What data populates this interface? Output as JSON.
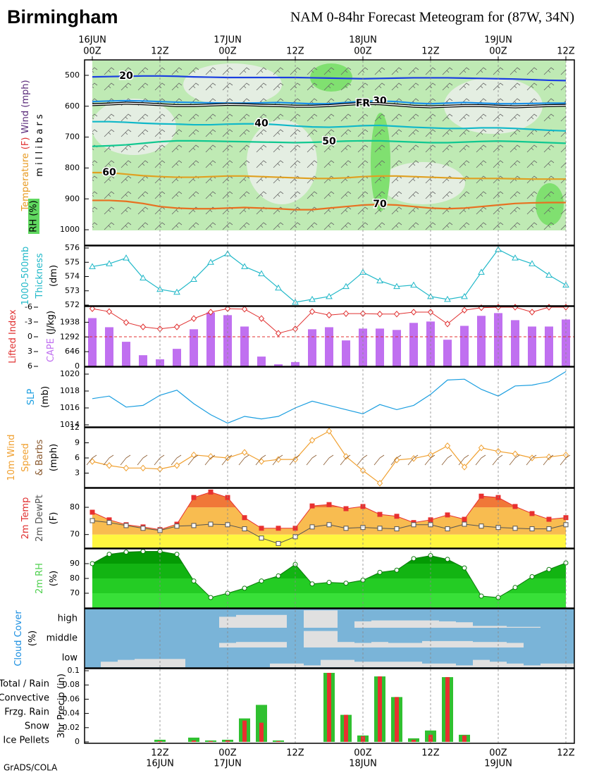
{
  "header": {
    "title": "Birmingham",
    "subtitle": "NAM 0-84hr Forecast Meteogram for (87W, 34N)"
  },
  "footer": "GrADS/COLA",
  "time_axis": {
    "top_labels": [
      [
        "16JUN",
        "00Z"
      ],
      null,
      null,
      null,
      [
        "12Z"
      ],
      null,
      null,
      null,
      [
        "17JUN",
        "00Z"
      ],
      null,
      null,
      null,
      [
        "12Z"
      ],
      null,
      null,
      null,
      [
        "18JUN",
        "00Z"
      ],
      null,
      null,
      null,
      [
        "12Z"
      ],
      null,
      null,
      null,
      [
        "19JUN",
        "00Z"
      ],
      null,
      null,
      null,
      [
        "12Z"
      ]
    ],
    "bottom_labels": [
      null,
      null,
      null,
      null,
      [
        "12Z",
        "16JUN"
      ],
      null,
      null,
      null,
      [
        "00Z",
        "17JUN"
      ],
      null,
      null,
      null,
      [
        "12Z"
      ],
      null,
      null,
      null,
      [
        "00Z",
        "18JUN"
      ],
      null,
      null,
      null,
      [
        "12Z"
      ],
      null,
      null,
      null,
      [
        "00Z",
        "19JUN"
      ],
      null,
      null,
      null,
      [
        "12Z"
      ]
    ]
  },
  "chart_data": [
    {
      "type": "contour",
      "ylabel": [
        [
          {
            "text": "Temperature",
            "color": "#e89a20"
          },
          {
            "text": "(F)",
            "color": "#e03030"
          },
          {
            "text": "Wind (mph)",
            "color": "#5a2a7a"
          }
        ],
        [
          {
            "text": "m i l l i b a r s",
            "color": "#000000"
          }
        ]
      ],
      "rh_label": "RH (%)",
      "ylim": [
        1050,
        450
      ],
      "yticks": [
        500,
        600,
        700,
        800,
        900,
        1000
      ],
      "series": [
        {
          "name": "20",
          "color": "#1a3fe0",
          "values": [
            505,
            504,
            503,
            502,
            502,
            503,
            505,
            506,
            507,
            507,
            507,
            507,
            507,
            508,
            509,
            510,
            511,
            510,
            509,
            508,
            508,
            508,
            509,
            510,
            511,
            512,
            514,
            516,
            517
          ]
        },
        {
          "name": "30",
          "color": "#1a90e8",
          "values": [
            585,
            583,
            582,
            583,
            585,
            587,
            588,
            589,
            590,
            590,
            589,
            588,
            590,
            592,
            592,
            588,
            584,
            583,
            585,
            590,
            592,
            590,
            588,
            590,
            592,
            592,
            591,
            590,
            590
          ]
        },
        {
          "name": "FR",
          "color": "#000000",
          "values": [
            595,
            593,
            590,
            592,
            595,
            598,
            598,
            596,
            594,
            595,
            597,
            598,
            600,
            600,
            598,
            594,
            591,
            592,
            596,
            600,
            602,
            600,
            598,
            598,
            600,
            602,
            600,
            598,
            597
          ]
        },
        {
          "name": "40",
          "color": "#10b8c8",
          "values": [
            650,
            650,
            652,
            655,
            657,
            658,
            660,
            660,
            658,
            657,
            657,
            660,
            664,
            667,
            668,
            666,
            663,
            662,
            665,
            668,
            670,
            672,
            672,
            670,
            670,
            672,
            675,
            678,
            680
          ]
        },
        {
          "name": "50",
          "color": "#10c890",
          "values": [
            730,
            728,
            725,
            720,
            715,
            712,
            712,
            713,
            714,
            715,
            716,
            717,
            718,
            717,
            715,
            713,
            712,
            712,
            714,
            716,
            718,
            718,
            716,
            714,
            713,
            714,
            716,
            718,
            720
          ]
        },
        {
          "name": "60",
          "color": "#e0a020",
          "values": [
            815,
            815,
            820,
            825,
            828,
            830,
            830,
            828,
            826,
            826,
            828,
            830,
            832,
            834,
            834,
            832,
            828,
            826,
            826,
            828,
            830,
            832,
            834,
            834,
            834,
            835,
            836,
            836,
            836
          ]
        },
        {
          "name": "70",
          "color": "#e87020",
          "values": [
            905,
            905,
            908,
            915,
            925,
            930,
            932,
            932,
            930,
            928,
            930,
            932,
            935,
            935,
            930,
            925,
            920,
            918,
            920,
            925,
            930,
            932,
            930,
            925,
            920,
            915,
            913,
            912,
            912
          ]
        }
      ]
    },
    {
      "type": "line",
      "marker": "triangle",
      "color": "#20b8c8",
      "ylabel": [
        [
          {
            "text": "1000-500mb",
            "color": "#20b8c8"
          }
        ],
        [
          {
            "text": "Thickness",
            "color": "#20b8c8"
          }
        ],
        [
          {
            "text": "(dm)",
            "color": "#000000"
          }
        ]
      ],
      "ylim": [
        572,
        576
      ],
      "yticks": [
        572,
        573,
        574,
        575,
        576
      ],
      "values": [
        574.7,
        574.9,
        575.3,
        573.9,
        573.1,
        572.9,
        573.8,
        575.0,
        575.6,
        574.7,
        574.2,
        573.2,
        572.2,
        572.4,
        572.6,
        573.3,
        574.3,
        573.7,
        573.3,
        573.4,
        572.6,
        572.4,
        572.6,
        574.3,
        575.9,
        575.3,
        574.9,
        574.1,
        573.4
      ]
    },
    {
      "type": "bar_line",
      "ylabel": [
        [
          {
            "text": "Lifted Index",
            "color": "#e03030"
          }
        ]
      ],
      "y2label": [
        [
          {
            "text": "CAPE",
            "color": "#c070f0"
          },
          {
            "text": "(J/kg)",
            "color": "#000000"
          }
        ]
      ],
      "ylim": [
        6,
        -6
      ],
      "yticks": [
        -6,
        -3,
        0,
        3,
        6
      ],
      "y2lim": [
        0,
        2600
      ],
      "y2ticks": [
        0,
        646,
        1292,
        1938
      ],
      "series": [
        {
          "name": "CAPE",
          "color": "#c070f0",
          "axis": "y2",
          "values": [
            2120,
            1720,
            1080,
            490,
            310,
            770,
            1630,
            2370,
            2250,
            1750,
            430,
            90,
            190,
            1630,
            1720,
            1140,
            1660,
            1660,
            1600,
            1910,
            1970,
            1170,
            1780,
            2220,
            2340,
            2030,
            1750,
            1750,
            2060
          ]
        },
        {
          "name": "Lifted Index",
          "color": "#e03030",
          "values": [
            -5.7,
            -5.1,
            -2.9,
            -2.0,
            -1.6,
            -2.0,
            -3.7,
            -5.0,
            -5.7,
            -5.6,
            -3.7,
            -0.7,
            -1.6,
            -5.1,
            -4.4,
            -4.7,
            -4.7,
            -4.6,
            -4.6,
            -5.0,
            -5.0,
            -2.6,
            -5.4,
            -5.9,
            -6,
            -6,
            -5.0,
            -6,
            -6
          ]
        }
      ]
    },
    {
      "type": "line",
      "marker": "none",
      "color": "#1a9ee0",
      "ylabel": [
        [
          {
            "text": "SLP",
            "color": "#1a9ee0"
          }
        ],
        [
          {
            "text": "(mb)",
            "color": "#000000"
          }
        ]
      ],
      "ylim": [
        1014,
        1020
      ],
      "yticks": [
        1014,
        1016,
        1018,
        1020
      ],
      "values": [
        1017.1,
        1017.4,
        1016.1,
        1016.3,
        1017.5,
        1018.1,
        1016.5,
        1015.2,
        1014.2,
        1015.0,
        1014.7,
        1015.0,
        1016.0,
        1016.8,
        1016.3,
        1015.8,
        1015.3,
        1016.4,
        1015.8,
        1016.3,
        1017.6,
        1019.3,
        1019.4,
        1018.2,
        1017.4,
        1018.6,
        1018.7,
        1019.1,
        1020.3
      ]
    },
    {
      "type": "line",
      "marker": "diamond",
      "color": "#f0a030",
      "ylabel": [
        [
          {
            "text": "10m Wind",
            "color": "#f0a030"
          }
        ],
        [
          {
            "text": "Speed",
            "color": "#f0a030"
          }
        ],
        [
          {
            "text": "& Barbs",
            "color": "#8a5a30"
          }
        ],
        [
          {
            "text": "(mph)",
            "color": "#000000"
          }
        ]
      ],
      "ylim": [
        0,
        12
      ],
      "yticks": [
        3,
        6,
        9,
        12
      ],
      "values": [
        5.3,
        4.5,
        4.0,
        4.0,
        3.8,
        4.5,
        6.6,
        6.3,
        6.0,
        7.1,
        5.3,
        5.7,
        5.7,
        9.5,
        11.3,
        6.3,
        3.5,
        1.0,
        5.6,
        5.9,
        6.6,
        8.4,
        4.2,
        8.0,
        7.3,
        6.8,
        6.0,
        6.2,
        6.6
      ]
    },
    {
      "type": "area",
      "ylabel": [
        [
          {
            "text": "2m Temp",
            "color": "#e03030"
          }
        ],
        [
          {
            "text": "2m DewPt",
            "color": "#555555"
          }
        ],
        [
          {
            "text": "(F)",
            "color": "#000000"
          }
        ]
      ],
      "ylim": [
        65,
        87
      ],
      "yticks": [
        70,
        80
      ],
      "band_colors": [
        "#fff640",
        "#f8bc50",
        "#f07838"
      ],
      "series": [
        {
          "name": "2m Temp",
          "color": "#e83030",
          "marker": "square",
          "values": [
            78.2,
            75.4,
            73.6,
            72.8,
            71.8,
            73.8,
            83.6,
            85.6,
            83.6,
            76.2,
            72.3,
            72.3,
            72.3,
            80.5,
            81.0,
            79.5,
            80.3,
            77.4,
            76.7,
            74.4,
            75.4,
            77.2,
            75.6,
            84.1,
            83.6,
            80.3,
            77.7,
            75.6,
            76.2
          ]
        },
        {
          "name": "2m DewPt",
          "color": "#555555",
          "marker": "square-open",
          "values": [
            75.1,
            74.4,
            73.3,
            72.3,
            71.5,
            73.1,
            73.3,
            73.8,
            73.6,
            72.1,
            68.7,
            66.7,
            69.2,
            72.8,
            73.6,
            72.3,
            72.6,
            72.3,
            72.1,
            73.6,
            73.6,
            72.1,
            73.8,
            73.1,
            72.6,
            72.3,
            72.1,
            72.1,
            73.6
          ]
        }
      ]
    },
    {
      "type": "area",
      "ylabel": [
        [
          {
            "text": "2m RH",
            "color": "#50d050"
          }
        ],
        [
          {
            "text": "(%)",
            "color": "#000000"
          }
        ]
      ],
      "ylim": [
        60,
        100
      ],
      "yticks": [
        70,
        80,
        90
      ],
      "band_colors": [
        "#38e038",
        "#24cc24",
        "#12b412",
        "#049a04"
      ],
      "series": [
        {
          "name": "2m RH",
          "color": "#0a7a0a",
          "marker": "circle-open",
          "values": [
            90,
            96.3,
            97.8,
            98.3,
            98.3,
            96.3,
            78.3,
            67.1,
            70.0,
            73.4,
            78.3,
            81.7,
            89.5,
            76.3,
            77.3,
            76.8,
            78.8,
            84.1,
            85.6,
            93.4,
            95.4,
            92.9,
            87.1,
            68.1,
            67.1,
            73.9,
            81.2,
            86.1,
            90.5
          ]
        }
      ]
    },
    {
      "type": "cloud",
      "ylabel": [
        [
          {
            "text": "Cloud Cover",
            "color": "#1a8ee0"
          }
        ],
        [
          {
            "text": "(%)",
            "color": "#000000"
          }
        ]
      ],
      "background": "#7ab4d8",
      "color": "#e0e0e0",
      "series": [
        {
          "name": "high",
          "values": [
            0,
            0,
            0,
            0,
            0,
            0,
            0,
            0,
            60,
            70,
            70,
            70,
            0,
            95,
            95,
            0,
            35,
            40,
            40,
            40,
            40,
            35,
            30,
            10,
            10,
            5,
            5,
            0,
            0
          ]
        },
        {
          "name": "middle",
          "values": [
            0,
            0,
            0,
            0,
            0,
            0,
            0,
            0,
            25,
            30,
            30,
            30,
            0,
            90,
            90,
            30,
            25,
            30,
            25,
            25,
            35,
            35,
            35,
            30,
            30,
            25,
            0,
            0,
            0
          ]
        },
        {
          "name": "low",
          "values": [
            0,
            30,
            40,
            45,
            45,
            45,
            0,
            0,
            0,
            0,
            0,
            20,
            20,
            10,
            40,
            40,
            30,
            30,
            30,
            30,
            20,
            20,
            10,
            40,
            30,
            20,
            10,
            20,
            20
          ]
        }
      ]
    },
    {
      "type": "bar",
      "ylabel": [
        [
          {
            "text": "3hr Precip (in)",
            "color": "#000000"
          }
        ]
      ],
      "ylim": [
        0,
        0.1
      ],
      "yticks": [
        0,
        0.02,
        0.04,
        0.06,
        0.08,
        0.1
      ],
      "series": [
        {
          "name": "Total / Rain",
          "color": "#30c030",
          "values": [
            0,
            0,
            0,
            0,
            0.003,
            0,
            0.006,
            0.002,
            0.003,
            0.033,
            0.052,
            0.002,
            0,
            0,
            0.097,
            0.038,
            0.009,
            0.092,
            0.063,
            0.005,
            0.016,
            0.091,
            0.01,
            0,
            0,
            0,
            0,
            0,
            0
          ]
        },
        {
          "name": "Convective",
          "color": "#e83030",
          "values": [
            0,
            0,
            0,
            0,
            0.001,
            0,
            0.002,
            0.001,
            0.002,
            0.03,
            0.027,
            0.001,
            0,
            0,
            0.097,
            0.038,
            0.008,
            0.092,
            0.063,
            0.003,
            0.01,
            0.091,
            0.009,
            0,
            0,
            0,
            0,
            0,
            0
          ]
        },
        {
          "name": "Frzg. Rain",
          "color": "#f08a30"
        },
        {
          "name": "Snow",
          "color": "#3060f0"
        },
        {
          "name": "Ice Pellets",
          "color": "#30c8e0"
        }
      ]
    }
  ]
}
